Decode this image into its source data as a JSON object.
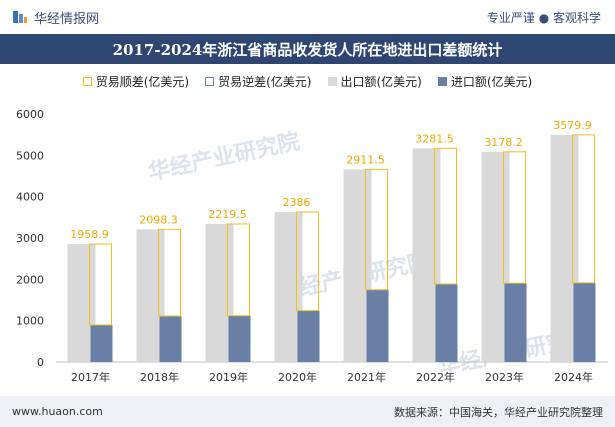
{
  "header": {
    "brand": "华经情报网",
    "tagline": "专业严谨 ● 客观科学"
  },
  "chart_data": {
    "type": "bar",
    "title": "2017-2024年浙江省商品收发货人所在地进出口差额统计",
    "categories": [
      "2017年",
      "2018年",
      "2019年",
      "2020年",
      "2021年",
      "2022年",
      "2023年",
      "2024年"
    ],
    "series": [
      {
        "name": "贸易顺差(亿美元)",
        "values": [
          1958.9,
          2098.3,
          2219.5,
          2386,
          2911.5,
          3281.5,
          3178.2,
          3579.9
        ],
        "color": "#f0c020"
      },
      {
        "name": "贸易逆差(亿美元)",
        "values": [
          0,
          0,
          0,
          0,
          0,
          0,
          0,
          0
        ],
        "color": "#5a8ec9"
      },
      {
        "name": "出口额(亿美元)",
        "values": [
          2855,
          3210,
          3340,
          3630,
          4660,
          5170,
          5085,
          5495
        ],
        "color": "#d9d9d9"
      },
      {
        "name": "进口额(亿美元)",
        "values": [
          896,
          1112,
          1120,
          1244,
          1749,
          1888,
          1907,
          1915
        ],
        "color": "#6a7fa6"
      }
    ],
    "data_labels": [
      "1958.9",
      "2098.3",
      "2219.5",
      "2386",
      "2911.5",
      "3281.5",
      "3178.2",
      "3579.9"
    ],
    "yticks": [
      "0",
      "1000",
      "2000",
      "3000",
      "4000",
      "5000",
      "6000"
    ],
    "ylim": [
      0,
      6000
    ],
    "legend_position": "top",
    "grid": false
  },
  "footer": {
    "url": "www.huaon.com",
    "source": "数据来源：中国海关，华经产业研究院整理"
  },
  "watermark": "华经产业研究院"
}
